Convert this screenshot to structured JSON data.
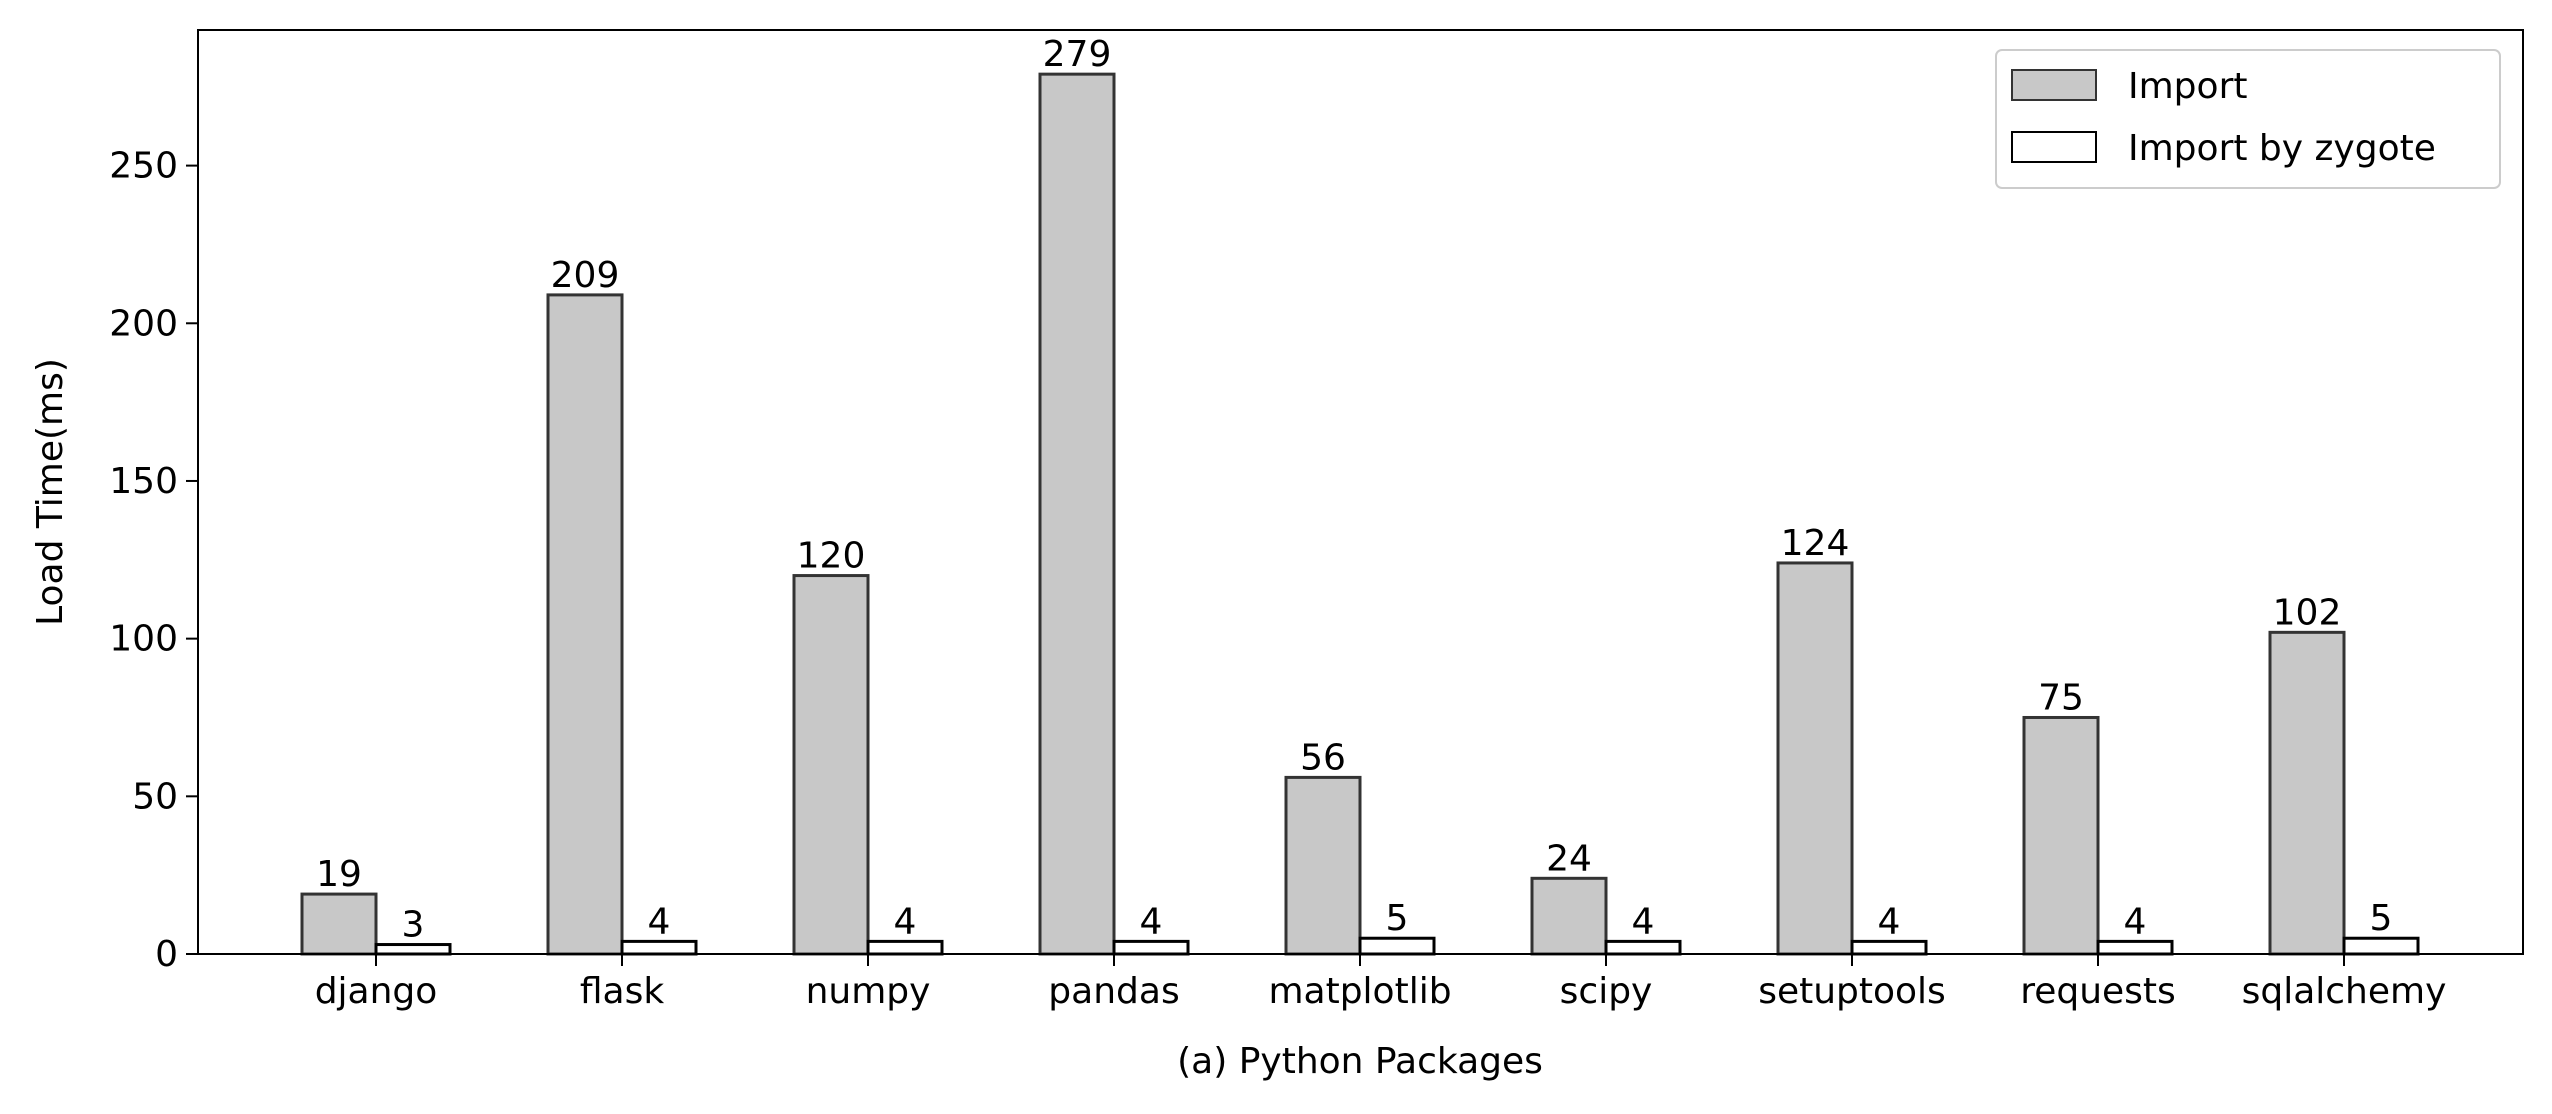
{
  "chart_data": {
    "type": "bar",
    "title": "",
    "xlabel": "(a) Python Packages",
    "ylabel": "Load Time(ms)",
    "categories": [
      "django",
      "flask",
      "numpy",
      "pandas",
      "matplotlib",
      "scipy",
      "setuptools",
      "requests",
      "sqlalchemy"
    ],
    "series": [
      {
        "name": "Import",
        "values": [
          19,
          209,
          120,
          279,
          56,
          24,
          124,
          75,
          102
        ],
        "color": "#c8c8c8",
        "edge": "#333333"
      },
      {
        "name": "Import by zygote",
        "values": [
          3,
          4,
          4,
          4,
          5,
          4,
          4,
          4,
          5
        ],
        "color": "#ffffff",
        "edge": "#000000"
      }
    ],
    "ylim": [
      0,
      293
    ],
    "yticks": [
      0,
      50,
      100,
      150,
      200,
      250
    ],
    "grid": false,
    "legend_position": "top-right"
  }
}
